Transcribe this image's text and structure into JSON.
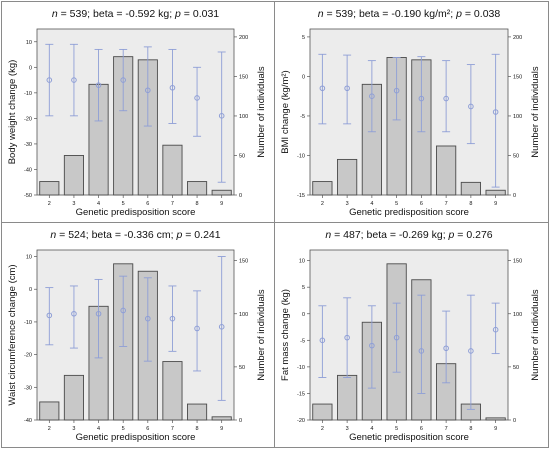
{
  "chart_data": [
    {
      "type": "bar",
      "title": "n = 539; beta = -0.592 kg; p = 0.031",
      "title_parts": {
        "n_value": "539",
        "beta_label": "beta = -0.592 kg",
        "p_value": "0.031"
      },
      "xlabel": "Genetic predisposition score",
      "ylabel_left": "Body weight change (kg)",
      "ylabel_right": "Number of individuals",
      "categories": [
        "2",
        "3",
        "4",
        "5",
        "6",
        "7",
        "8",
        "9"
      ],
      "left_axis": {
        "range": [
          -50,
          15
        ],
        "ticks": [
          -50,
          -40,
          -30,
          -20,
          -10,
          0,
          10
        ],
        "tick_labels": [
          "-50",
          "-40",
          "-30",
          "-20",
          "-10",
          "0",
          "10"
        ]
      },
      "right_axis": {
        "range": [
          0,
          210
        ],
        "ticks": [
          0,
          50,
          100,
          150,
          200
        ],
        "tick_labels": [
          "0",
          "50",
          "100",
          "150",
          "200"
        ]
      },
      "bars": {
        "name": "Number of individuals",
        "values": [
          17,
          50,
          140,
          175,
          171,
          63,
          17,
          6
        ]
      },
      "error_points": {
        "name": "Body weight change",
        "mean": [
          -5,
          -5,
          -7,
          -5,
          -9,
          -8,
          -12,
          -19
        ],
        "lower": [
          -19,
          -19,
          -21,
          -17,
          -23,
          -22,
          -27,
          -45
        ],
        "upper": [
          9,
          9,
          7,
          7,
          8,
          7,
          0,
          6
        ]
      },
      "colors": {
        "bar": "#c8c8c8",
        "bar_stroke": "#4a4a4a",
        "plot_bg": "#ececec",
        "error": "#8e9ed6"
      }
    },
    {
      "type": "bar",
      "title": "n = 539; beta = -0.190 kg/m²; p = 0.038",
      "title_parts": {
        "n_value": "539",
        "beta_label": "beta = -0.190 kg/m²",
        "p_value": "0.038"
      },
      "xlabel": "Genetic predisposition score",
      "ylabel_left": "BMI change (kg/m²)",
      "ylabel_right": "Number of individuals",
      "categories": [
        "2",
        "3",
        "4",
        "5",
        "6",
        "7",
        "8",
        "9"
      ],
      "left_axis": {
        "range": [
          -15,
          6
        ],
        "ticks": [
          -15,
          -10,
          -5,
          0,
          5
        ],
        "tick_labels": [
          "-15",
          "-10",
          "-5",
          "0",
          "5"
        ]
      },
      "right_axis": {
        "range": [
          0,
          210
        ],
        "ticks": [
          0,
          50,
          100,
          150,
          200
        ],
        "tick_labels": [
          "0",
          "50",
          "100",
          "150",
          "200"
        ]
      },
      "bars": {
        "name": "Number of individuals",
        "values": [
          17,
          45,
          140,
          174,
          171,
          62,
          16,
          6
        ]
      },
      "error_points": {
        "name": "BMI change",
        "mean": [
          -1.5,
          -1.5,
          -2.5,
          -1.8,
          -2.8,
          -2.8,
          -3.8,
          -4.5
        ],
        "lower": [
          -6,
          -6,
          -7,
          -5.5,
          -7,
          -7,
          -8.5,
          -14
        ],
        "upper": [
          2.8,
          2.7,
          2,
          2.4,
          2.5,
          2,
          1.5,
          2.8
        ]
      },
      "colors": {
        "bar": "#c8c8c8",
        "bar_stroke": "#4a4a4a",
        "plot_bg": "#ececec",
        "error": "#8e9ed6"
      }
    },
    {
      "type": "bar",
      "title": "n = 524; beta = -0.336 cm; p = 0.241",
      "title_parts": {
        "n_value": "524",
        "beta_label": "beta = -0.336 cm",
        "p_value": "0.241"
      },
      "xlabel": "Genetic predisposition score",
      "ylabel_left": "Waist circumference change (cm)",
      "ylabel_right": "Number of individuals",
      "categories": [
        "2",
        "3",
        "4",
        "5",
        "6",
        "7",
        "8",
        "9"
      ],
      "left_axis": {
        "range": [
          -40,
          12
        ],
        "ticks": [
          -40,
          -30,
          -20,
          -10,
          0,
          10
        ],
        "tick_labels": [
          "-40",
          "-30",
          "-20",
          "-10",
          "0",
          "10"
        ]
      },
      "right_axis": {
        "range": [
          0,
          160
        ],
        "ticks": [
          0,
          50,
          100,
          150
        ],
        "tick_labels": [
          "0",
          "50",
          "100",
          "150"
        ]
      },
      "bars": {
        "name": "Number of individuals",
        "values": [
          17,
          42,
          107,
          147,
          140,
          55,
          15,
          3
        ]
      },
      "error_points": {
        "name": "Waist circumference change",
        "mean": [
          -8,
          -7.5,
          -7.5,
          -6.5,
          -9,
          -9,
          -12,
          -11.5
        ],
        "lower": [
          -17,
          -18,
          -21,
          -17.5,
          -22,
          -19,
          -25,
          -34
        ],
        "upper": [
          0.5,
          1,
          3,
          4,
          3.5,
          1,
          -0.5,
          10
        ]
      },
      "colors": {
        "bar": "#c8c8c8",
        "bar_stroke": "#4a4a4a",
        "plot_bg": "#ececec",
        "error": "#8e9ed6"
      }
    },
    {
      "type": "bar",
      "title": "n = 487; beta = -0.269 kg; p = 0.276",
      "title_parts": {
        "n_value": "487",
        "beta_label": "beta = -0.269 kg",
        "p_value": "0.276"
      },
      "xlabel": "Genetic predisposition score",
      "ylabel_left": "Fat mass change (kg)",
      "ylabel_right": "Number of individuals",
      "categories": [
        "2",
        "3",
        "4",
        "5",
        "6",
        "7",
        "8",
        "9"
      ],
      "left_axis": {
        "range": [
          -20,
          12
        ],
        "ticks": [
          -20,
          -15,
          -10,
          -5,
          0,
          5,
          10
        ],
        "tick_labels": [
          "-20",
          "-15",
          "-10",
          "-5",
          "0",
          "5",
          "10"
        ]
      },
      "right_axis": {
        "range": [
          0,
          160
        ],
        "ticks": [
          0,
          50,
          100,
          150
        ],
        "tick_labels": [
          "0",
          "50",
          "100",
          "150"
        ]
      },
      "bars": {
        "name": "Number of individuals",
        "values": [
          15,
          42,
          92,
          147,
          132,
          53,
          15,
          2
        ]
      },
      "error_points": {
        "name": "Fat mass change",
        "mean": [
          -5,
          -4.5,
          -6,
          -4.5,
          -7,
          -6.5,
          -7,
          -3
        ],
        "lower": [
          -12,
          -12,
          -14,
          -11,
          -15,
          -13,
          -18,
          -7.5
        ],
        "upper": [
          1.5,
          3,
          1.5,
          2,
          3.5,
          0.5,
          3.5,
          2
        ]
      },
      "colors": {
        "bar": "#c8c8c8",
        "bar_stroke": "#4a4a4a",
        "plot_bg": "#ececec",
        "error": "#8e9ed6"
      }
    }
  ]
}
